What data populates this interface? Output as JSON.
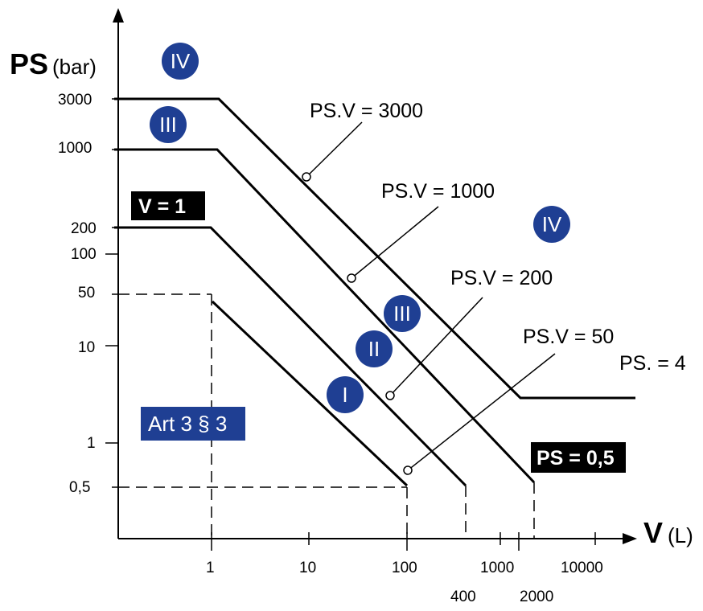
{
  "axes": {
    "y_label": "PS",
    "y_unit": "(bar)",
    "x_label": "V",
    "x_unit": "(L)",
    "y_ticks": [
      "3000",
      "1000",
      "200",
      "100",
      "50",
      "10",
      "1",
      "0,5"
    ],
    "x_ticks": [
      "1",
      "10",
      "100",
      "1000",
      "10000"
    ],
    "x_extra_ticks": [
      "400",
      "2000"
    ]
  },
  "labels": {
    "psv3000": "PS.V = 3000",
    "psv1000": "PS.V = 1000",
    "psv200": "PS.V = 200",
    "psv50": "PS.V = 50",
    "ps4": "PS. = 4",
    "v1": "V = 1",
    "ps05": "PS = 0,5",
    "art": "Art 3 § 3"
  },
  "categories": {
    "iv_top": "IV",
    "iii_left": "III",
    "iv_right": "IV",
    "iii_mid": "III",
    "ii": "II",
    "i": "I"
  },
  "colors": {
    "category_fill": "#1f3f93",
    "badge_fill": "#000000",
    "art_fill": "#1f3f93"
  }
}
